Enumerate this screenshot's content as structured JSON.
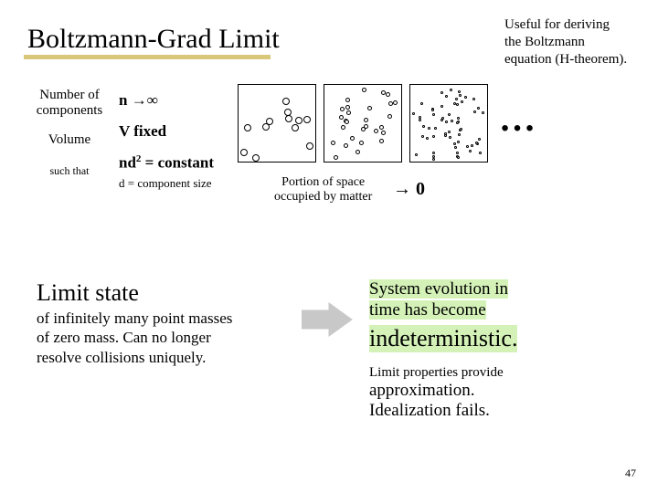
{
  "title": "Boltzmann-Grad Limit",
  "useful_line1": "Useful for deriving",
  "useful_line2": "the Boltzmann",
  "useful_line3": "equation (H-theorem).",
  "labels": {
    "number_l1": "Number of",
    "number_l2": "components",
    "volume": "Volume",
    "such_that": "such that"
  },
  "formulas": {
    "n": "n →∞",
    "v": "V fixed",
    "nd_pre": "nd",
    "nd_sup": "2",
    "nd_post": " = constant",
    "dsize": "d = component size"
  },
  "ellipsis": "…",
  "portion_l1": "Portion of space",
  "portion_l2": "occupied by matter",
  "portion_arrow": "→ 0",
  "limit_title": "Limit state",
  "limit_sub_l1": "of infinitely many point masses",
  "limit_sub_l2": "of zero mass. Can no longer",
  "limit_sub_l3": "resolve collisions uniquely.",
  "sys_l1": "System evolution in",
  "sys_l2": "time has become",
  "indeterministic": "indeterministic.",
  "limprops": "Limit properties provide",
  "approx": "approximation.",
  "idealfails": "Idealization fails.",
  "pagenum": "47",
  "boxes": [
    {
      "count": 12,
      "size": 8
    },
    {
      "count": 28,
      "size": 5
    },
    {
      "count": 60,
      "size": 3
    }
  ],
  "colors": {
    "underline": "#d9c77a",
    "highlight": "#d4f2b8",
    "arrow": "#c8c8c8"
  }
}
